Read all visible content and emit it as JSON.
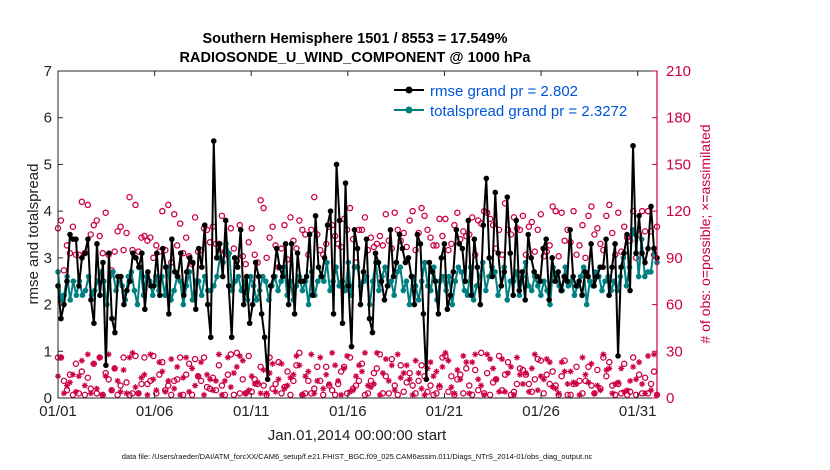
{
  "chart_data": {
    "type": "line",
    "title_line1": "Southern Hemisphere 1501 / 8553 = 17.549%",
    "title_line2": "RADIOSONDE_U_WIND_COMPONENT @ 1000 hPa",
    "xlabel": "Jan.01,2014 00:00:00 start",
    "ylabel": "rmse and totalspread",
    "ylabel_right": "# of obs: o=possible; ×=assimilated",
    "footnote": "data file: /Users/raeder/DAI/ATM_forcXX/CAM6_setup/f.e21.FHIST_BGC.f09_025.CAM6assim.011/Diags_NTrS_2014-01/obs_diag_output.nc",
    "x_range": [
      1,
      32
    ],
    "ylim": [
      0,
      7
    ],
    "ylim_right": [
      0,
      210
    ],
    "x_ticks": [
      1,
      6,
      11,
      16,
      21,
      26,
      31
    ],
    "x_tick_labels": [
      "01/01",
      "01/06",
      "01/11",
      "01/16",
      "01/21",
      "01/26",
      "01/31"
    ],
    "y_ticks": [
      0,
      1,
      2,
      3,
      4,
      5,
      6,
      7
    ],
    "y_tick_labels": [
      "0",
      "1",
      "2",
      "3",
      "4",
      "5",
      "6",
      "7"
    ],
    "y_right_ticks": [
      0,
      30,
      60,
      90,
      120,
      150,
      180,
      210
    ],
    "y_right_tick_labels": [
      "0",
      "30",
      "60",
      "90",
      "120",
      "150",
      "180",
      "210"
    ],
    "legend_position": "top-right",
    "colors": {
      "rmse": "#000000",
      "spread": "#008080",
      "obs": "#cc0044",
      "axis_right": "#cc0044"
    },
    "series": [
      {
        "name": "rmse grand pr = 2.802",
        "key": "rmse",
        "values": [
          2.4,
          1.7,
          2.0,
          2.5,
          3.5,
          3.4,
          3.4,
          2.4,
          3.0,
          3.1,
          3.4,
          2.1,
          1.6,
          3.3,
          2.2,
          2.9,
          0.7,
          3.1,
          1.7,
          1.4,
          2.6,
          2.6,
          2.0,
          2.3,
          2.5,
          3.1,
          3.0,
          2.8,
          3.1,
          1.9,
          2.7,
          2.4,
          2.4,
          3.1,
          2.2,
          3.2,
          2.8,
          1.8,
          3.4,
          2.7,
          2.6,
          3.1,
          2.2,
          2.7,
          3.0,
          2.9,
          1.9,
          3.2,
          2.8,
          3.7,
          2.0,
          1.3,
          5.5,
          3.0,
          3.3,
          2.6,
          3.8,
          2.4,
          1.3,
          3.0,
          2.8,
          3.6,
          2.0,
          2.6,
          1.6,
          2.0,
          2.9,
          2.6,
          1.8,
          1.3,
          0.4,
          2.4,
          2.6,
          3.2,
          2.8,
          2.6,
          3.3,
          2.0,
          3.3,
          1.8,
          3.1,
          2.5,
          2.5,
          2.6,
          3.5,
          2.2,
          3.9,
          2.8,
          2.6,
          3.0,
          3.7,
          4.0,
          1.8,
          5.0,
          3.8,
          1.6,
          4.6,
          2.4,
          1.1,
          3.6,
          3.2,
          2.0,
          2.7,
          3.4,
          1.7,
          1.4,
          3.1,
          2.9,
          2.5,
          2.1,
          2.4,
          3.6,
          2.6,
          2.9,
          3.5,
          3.2,
          2.9,
          3.0,
          2.6,
          2.0,
          3.5,
          3.3,
          1.8,
          0.4,
          2.9,
          2.7,
          2.5,
          1.8,
          3.0,
          3.3,
          1.9,
          2.2,
          2.7,
          3.6,
          3.3,
          3.2,
          2.5,
          3.8,
          2.2,
          3.4,
          2.8,
          2.0,
          3.7,
          4.7,
          3.0,
          2.6,
          4.4,
          3.1,
          2.4,
          2.7,
          4.3,
          3.1,
          2.2,
          3.8,
          2.3,
          2.7,
          2.1,
          3.5,
          3.0,
          2.7,
          2.6,
          2.5,
          3.2,
          3.4,
          2.1,
          3.0,
          2.5,
          2.7,
          2.3,
          2.6,
          2.5,
          3.6,
          2.6,
          2.4,
          2.5,
          2.2,
          2.7,
          2.6,
          3.3,
          2.4,
          2.6,
          2.8,
          2.8,
          3.4,
          2.2,
          2.8,
          3.3,
          0.9,
          2.8,
          3.1,
          3.5,
          2.3,
          5.4,
          3.1,
          3.9,
          3.1,
          2.9,
          3.2,
          4.1,
          3.2,
          3.0
        ],
        "marker": "filled-circle"
      },
      {
        "name": "totalspread grand pr = 2.3272",
        "key": "spread",
        "values": [
          2.7,
          2.1,
          2.2,
          2.6,
          2.1,
          2.5,
          2.2,
          2.5,
          2.2,
          2.3,
          2.6,
          2.2,
          2.3,
          2.5,
          2.7,
          2.5,
          2.0,
          2.6,
          2.7,
          2.3,
          2.5,
          2.4,
          2.1,
          2.6,
          2.7,
          2.3,
          2.0,
          2.8,
          2.2,
          2.6,
          2.5,
          2.2,
          2.6,
          2.3,
          2.6,
          2.2,
          2.8,
          2.1,
          2.3,
          2.6,
          2.5,
          2.0,
          2.4,
          2.7,
          2.1,
          2.5,
          2.5,
          2.2,
          2.6,
          2.3,
          2.3,
          2.4,
          2.6,
          3.0,
          2.9,
          3.3,
          3.1,
          2.3,
          2.5,
          2.6,
          2.3,
          2.5,
          2.1,
          2.6,
          2.4,
          2.1,
          2.3,
          2.6,
          2.5,
          2.1,
          2.4,
          2.6,
          2.3,
          2.5,
          2.8,
          2.2,
          2.5,
          2.1,
          2.4,
          2.6,
          2.3,
          2.5,
          2.0,
          2.7,
          2.2,
          2.5,
          2.6,
          2.5,
          2.9,
          2.3,
          2.5,
          2.8,
          2.4,
          2.5,
          2.3,
          2.9,
          2.2,
          2.8,
          2.8,
          2.4,
          2.5,
          2.6,
          2.0,
          2.5,
          2.9,
          2.3,
          2.6,
          2.8,
          2.4,
          2.5,
          2.2,
          2.7,
          2.8,
          2.3,
          2.5,
          2.0,
          2.6,
          2.4,
          2.1,
          2.5,
          2.9,
          2.4,
          2.3,
          2.8,
          2.1,
          2.5,
          2.6,
          2.3,
          2.6,
          2.0,
          2.5,
          2.8,
          2.7,
          2.3,
          2.2,
          2.8,
          2.1,
          2.4,
          2.6,
          2.9,
          2.3,
          2.6,
          2.8,
          2.7,
          2.2,
          2.4,
          2.8,
          2.1,
          2.5,
          2.5,
          2.7,
          2.2,
          2.6,
          2.9,
          2.4,
          2.3,
          2.6,
          2.4,
          2.2,
          2.5,
          2.3,
          2.0,
          2.8,
          2.6,
          2.4,
          2.3,
          2.8,
          2.4,
          2.5,
          2.2,
          2.4,
          2.6,
          2.8,
          2.0,
          2.5,
          2.4,
          2.7,
          2.6,
          2.3,
          2.5,
          2.6,
          2.3,
          2.5,
          2.3,
          2.6,
          3.0,
          2.4,
          2.8,
          3.6,
          3.5,
          2.6,
          3.4,
          2.6,
          2.7,
          2.7,
          3.2,
          2.9
        ],
        "marker": "filled-circle"
      }
    ],
    "obs_series": [
      {
        "name": "possible",
        "marker": "o",
        "values": [
          109,
          114,
          82,
          98,
          93,
          110,
          92,
          92,
          126,
          93,
          124,
          105,
          111,
          114,
          104,
          93,
          119,
          92,
          82,
          94,
          107,
          110,
          95,
          106,
          129,
          95,
          124,
          94,
          103,
          104,
          101,
          103,
          90,
          98,
          94,
          120,
          95,
          124,
          87,
          118,
          98,
          112,
          93,
          103,
          91,
          86,
          116,
          94,
          95,
          109,
          108,
          100,
          110,
          99,
          99,
          117,
          94,
          92,
          109,
          96,
          88,
          111,
          91,
          86,
          100,
          109,
          92,
          87,
          127,
          122,
          90,
          103,
          110,
          98,
          84,
          96,
          111,
          89,
          116,
          101,
          96,
          114,
          108,
          105,
          92,
          108,
          129,
          105,
          95,
          92,
          99,
          110,
          111,
          104,
          99,
          97,
          115,
          108,
          122,
          102,
          87,
          108,
          108,
          116,
          95,
          103,
          97,
          99,
          104,
          98,
          118,
          101,
          96,
          119,
          108,
          101,
          106,
          97,
          114,
          120,
          95,
          106,
          122,
          117,
          108,
          103,
          98,
          98,
          115,
          104,
          115,
          95,
          99,
          111,
          119,
          102,
          107,
          104,
          105,
          116,
          92,
          114,
          112,
          120,
          119,
          115,
          111,
          96,
          108,
          92,
          125,
          108,
          105,
          116,
          109,
          108,
          117,
          92,
          110,
          113,
          94,
          108,
          118,
          91,
          94,
          98,
          123,
          120,
          91,
          119,
          101,
          108,
          100,
          120,
          92,
          98,
          111,
          90,
          117,
          123,
          105,
          109,
          99,
          95,
          117,
          124,
          106,
          92,
          119,
          94,
          110,
          103,
          101,
          120,
          90,
          105,
          120,
          107,
          120,
          107,
          92,
          110
        ],
        "low_values": [
          26,
          26,
          11,
          5,
          15,
          2,
          22,
          3,
          17,
          2,
          13,
          6,
          22,
          3,
          26,
          2,
          16,
          12,
          5,
          19,
          2,
          8,
          26,
          10,
          2,
          3,
          27,
          3,
          9,
          26,
          9,
          11,
          27,
          3,
          15,
          23,
          5,
          8,
          2,
          11,
          12,
          26,
          2,
          15,
          22,
          2,
          25,
          14,
          11,
          26,
          7,
          6,
          13,
          5,
          21,
          8,
          2,
          15,
          28,
          2,
          29,
          3,
          12,
          3,
          27,
          4,
          12,
          9,
          20,
          8,
          2,
          26,
          6,
          9,
          23,
          3,
          7,
          17,
          2,
          11,
          21,
          29,
          2,
          3,
          11,
          3,
          6,
          20,
          11,
          2,
          20,
          8,
          5,
          2,
          9,
          17,
          20,
          3,
          26,
          6,
          8,
          11,
          22,
          2,
          3,
          11,
          16,
          19,
          28,
          3,
          14,
          3,
          25,
          8,
          2,
          21,
          4,
          10,
          16,
          8,
          3,
          11,
          21,
          14,
          4,
          8,
          2,
          3,
          7,
          26,
          27,
          4,
          14,
          2,
          12,
          15,
          3,
          19,
          8,
          2,
          18,
          5,
          29,
          3,
          16,
          2,
          10,
          12,
          27,
          5,
          15,
          23,
          2,
          4,
          9,
          19,
          18,
          15,
          9,
          4,
          12,
          25,
          24,
          3,
          15,
          9,
          17,
          8,
          2,
          14,
          24,
          2,
          2,
          9,
          20,
          11,
          3,
          11,
          20,
          8,
          3,
          18,
          6,
          26,
          14,
          23,
          8,
          2,
          9,
          3,
          22,
          2,
          4,
          26,
          2,
          15,
          3,
          13,
          3,
          9,
          17,
          2
        ]
      },
      {
        "name": "assimilated",
        "marker": "asterisk",
        "values": [
          14,
          26,
          3,
          8,
          10,
          15,
          4,
          14,
          24,
          8,
          28,
          3,
          22,
          6,
          26,
          2,
          14,
          28,
          5,
          19,
          11,
          4,
          18,
          3,
          26,
          29,
          7,
          3,
          13,
          15,
          2,
          28,
          12,
          5,
          23,
          17,
          4,
          11,
          25,
          6,
          20,
          2,
          13,
          26,
          4,
          19,
          8,
          14,
          23,
          2,
          15,
          12,
          5,
          11,
          28,
          2,
          11,
          26,
          7,
          16,
          20,
          27,
          24,
          3,
          5,
          14,
          9,
          10,
          3,
          18,
          3,
          16,
          22,
          4,
          12,
          22,
          6,
          8,
          13,
          15,
          27,
          21,
          2,
          14,
          17,
          28,
          3,
          11,
          26,
          6,
          15,
          9,
          29,
          21,
          11,
          2,
          19,
          27,
          4,
          5,
          14,
          21,
          17,
          29,
          8,
          7,
          9,
          29,
          2,
          16,
          25,
          11,
          21,
          5,
          28,
          13,
          16,
          21,
          12,
          2,
          24,
          16,
          6,
          2,
          19,
          23,
          14,
          17,
          8,
          20,
          29,
          24,
          7,
          3,
          18,
          12,
          27,
          23,
          3,
          23,
          28,
          12,
          8,
          2,
          28,
          25,
          19,
          12,
          4,
          25,
          4,
          16,
          20,
          2,
          26,
          15,
          9,
          16,
          4,
          19,
          28,
          5,
          14,
          12,
          25,
          23,
          7,
          6,
          3,
          23,
          17,
          9,
          17,
          10,
          9,
          2,
          26,
          15,
          10,
          22,
          3,
          8,
          5,
          28,
          18,
          19,
          3,
          9,
          10,
          19,
          4,
          5,
          11,
          20,
          12,
          23,
          9,
          3,
          27,
          5,
          28,
          2
        ]
      }
    ]
  }
}
